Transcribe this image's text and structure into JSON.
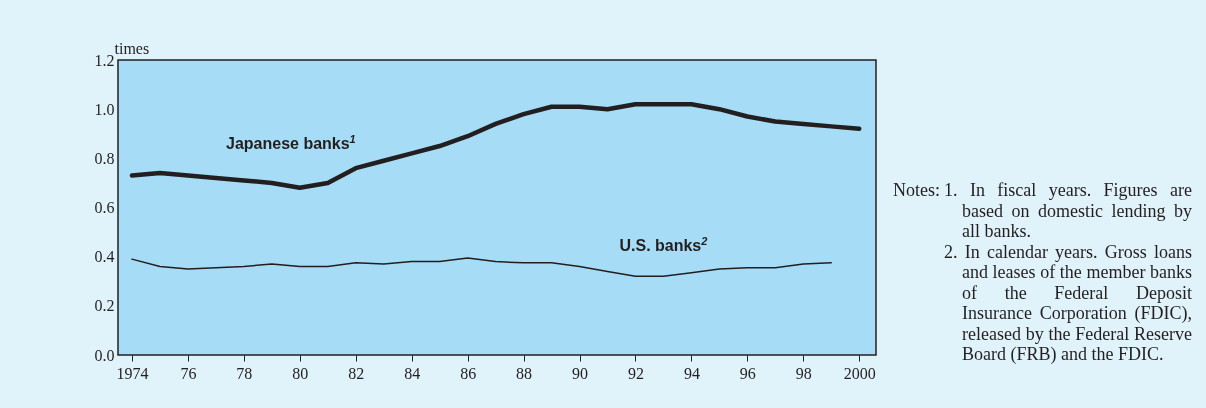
{
  "chart_data": {
    "type": "line",
    "ylabel": "times",
    "x": [
      1974,
      1975,
      1976,
      1977,
      1978,
      1979,
      1980,
      1981,
      1982,
      1983,
      1984,
      1985,
      1986,
      1987,
      1988,
      1989,
      1990,
      1991,
      1992,
      1993,
      1994,
      1995,
      1996,
      1997,
      1998,
      1999,
      2000
    ],
    "series": [
      {
        "name": "Japanese banks$^{1}$",
        "color": "#231f20",
        "values": [
          0.73,
          0.74,
          0.73,
          0.72,
          0.71,
          0.7,
          0.68,
          0.7,
          0.76,
          0.79,
          0.82,
          0.85,
          0.89,
          0.94,
          0.98,
          1.01,
          1.01,
          1.0,
          1.02,
          1.02,
          1.02,
          1.0,
          0.97,
          0.95,
          0.94,
          0.93,
          0.92
        ]
      },
      {
        "name": "U.S. banks$^{2}$",
        "color": "#231f20",
        "values": [
          0.39,
          0.36,
          0.35,
          0.355,
          0.36,
          0.37,
          0.36,
          0.36,
          0.375,
          0.37,
          0.38,
          0.38,
          0.395,
          0.38,
          0.375,
          0.375,
          0.36,
          0.34,
          0.32,
          0.32,
          0.335,
          0.35,
          0.355,
          0.355,
          0.37,
          0.375,
          null
        ]
      }
    ],
    "xlim": [
      1973.5,
      2000.6
    ],
    "xticks": [
      1974,
      {
        "value": 1976,
        "label": "76"
      },
      {
        "value": 1978,
        "label": "78"
      },
      {
        "value": 1980,
        "label": "80"
      },
      {
        "value": 1982,
        "label": "82"
      },
      {
        "value": 1984,
        "label": "84"
      },
      {
        "value": 1986,
        "label": "86"
      },
      {
        "value": 1988,
        "label": "88"
      },
      {
        "value": 1990,
        "label": "90"
      },
      {
        "value": 1992,
        "label": "92"
      },
      {
        "value": 1994,
        "label": "94"
      },
      {
        "value": 1996,
        "label": "96"
      },
      {
        "value": 1998,
        "label": "98"
      },
      2000
    ],
    "ylim": [
      0,
      1.2
    ],
    "yticks": [
      {
        "value": 0,
        "label": "0.0"
      },
      {
        "value": 0.2,
        "label": "0.2"
      },
      {
        "value": 0.4,
        "label": "0.4"
      },
      {
        "value": 0.6,
        "label": "0.6"
      },
      {
        "value": 0.8,
        "label": "0.8"
      },
      {
        "value": 1.0,
        "label": "1.0"
      },
      {
        "value": 1.2,
        "label": "1.2"
      }
    ],
    "grid": false,
    "marker": "none",
    "line_style": "solid",
    "annotations": [
      "Notes:",
      "1. In fiscal years. Figures are based on domestic lending by all banks.",
      "2. In calendar years. Gross loans and leases of the member banks of the Federal Deposit Insurance Corporation (FDIC), released by the Federal Reserve Board (FRB) and the FDIC."
    ]
  }
}
